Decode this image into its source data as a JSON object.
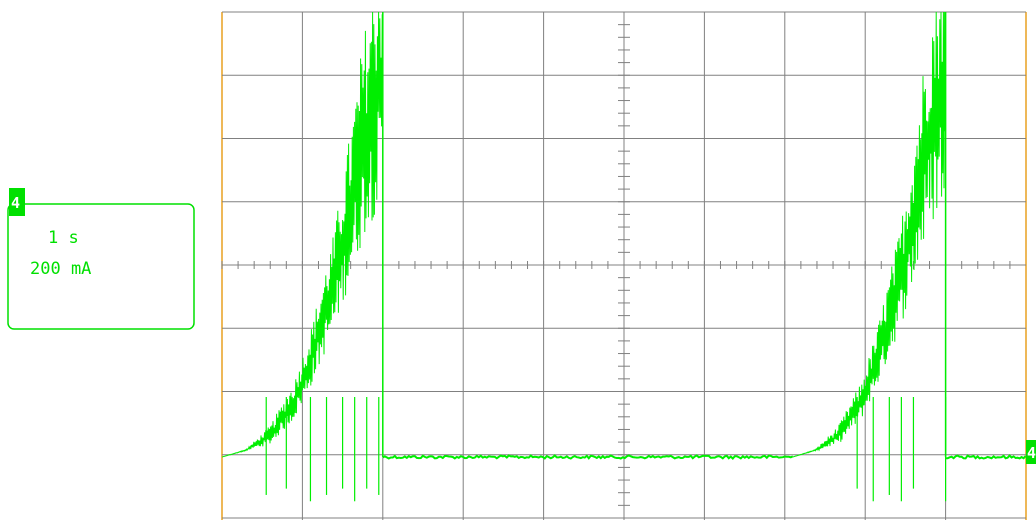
{
  "chart_data": {
    "type": "line",
    "instrument": "oscilloscope",
    "channel": "4",
    "timebase": "1 s",
    "scale": "200 mA",
    "grid": true,
    "divisions": {
      "x": 10,
      "y": 8
    },
    "baseline_div": 0,
    "trace_color": "#00ee00",
    "grid_color": "#808080",
    "frame_color": "#e8a020",
    "label_color": "#00e000",
    "x_unit": "div",
    "y_unit": "div",
    "envelope_upper": [
      [
        0,
        0.0
      ],
      [
        0.3,
        0.12
      ],
      [
        0.6,
        0.5
      ],
      [
        0.9,
        1.2
      ],
      [
        1.1,
        2.0
      ],
      [
        1.4,
        3.6
      ],
      [
        1.6,
        5.2
      ],
      [
        1.75,
        6.6
      ],
      [
        1.9,
        7.6
      ],
      [
        1.95,
        8.0
      ],
      [
        2.0,
        8.0
      ]
    ],
    "envelope_lower": [
      [
        0,
        0.0
      ],
      [
        0.6,
        0.2
      ],
      [
        0.9,
        0.6
      ],
      [
        1.1,
        1.1
      ],
      [
        1.4,
        2.0
      ],
      [
        1.6,
        2.8
      ],
      [
        1.8,
        3.6
      ],
      [
        2.0,
        4.0
      ]
    ],
    "baseline_segments": [
      [
        2.0,
        7.1
      ],
      [
        9.0,
        10.0
      ]
    ],
    "bursts": [
      {
        "start": 0.0,
        "end": 2.0
      },
      {
        "start": 7.1,
        "end": 9.0
      }
    ],
    "negative_spikes_div": [
      [
        0.55,
        -0.6
      ],
      [
        0.8,
        -0.5
      ],
      [
        1.1,
        -0.7
      ],
      [
        1.3,
        -0.6
      ],
      [
        1.5,
        -0.5
      ],
      [
        1.65,
        -0.7
      ],
      [
        1.8,
        -0.5
      ],
      [
        1.95,
        -0.6
      ],
      [
        7.9,
        -0.5
      ],
      [
        8.1,
        -0.7
      ],
      [
        8.3,
        -0.6
      ],
      [
        8.45,
        -0.7
      ],
      [
        8.6,
        -0.5
      ],
      [
        9.0,
        -0.7
      ]
    ]
  },
  "label_box": {
    "marker": "4",
    "time_label": "1 s",
    "scale_label": "200 mA"
  },
  "right_marker": "4"
}
